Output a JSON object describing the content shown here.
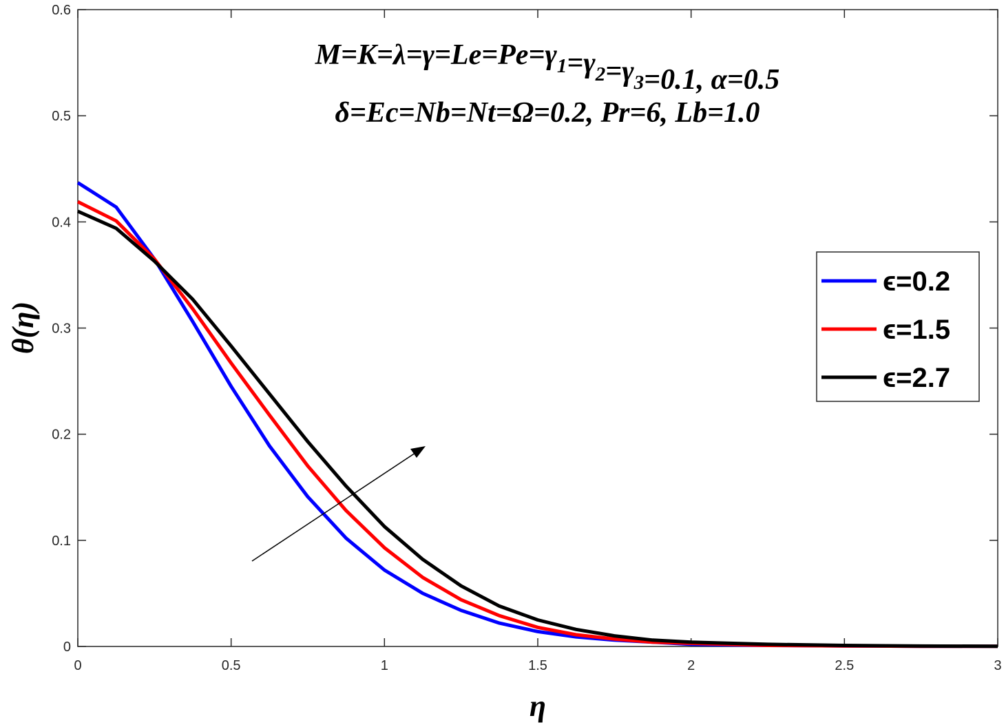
{
  "chart_data": {
    "type": "line",
    "xlabel": "η",
    "ylabel": "θ(η)",
    "xlim": [
      0,
      3
    ],
    "ylim": [
      0,
      0.6
    ],
    "xticks": [
      "0",
      "0.5",
      "1",
      "1.5",
      "2",
      "2.5",
      "3"
    ],
    "yticks": [
      "0",
      "0.1",
      "0.2",
      "0.3",
      "0.4",
      "0.5",
      "0.6"
    ],
    "annotation_line1": "M=K=λ=γ=Le=Pe=γ1=γ2=γ3=0.1, α=0.5",
    "annotation_line2": "δ=Ec=Nb=Nt=Ω=0.2, Pr=6, Lb=1.0",
    "legend_position": "right",
    "x": [
      0,
      0.125,
      0.25,
      0.375,
      0.5,
      0.625,
      0.75,
      0.875,
      1.0,
      1.125,
      1.25,
      1.375,
      1.5,
      1.625,
      1.75,
      1.875,
      2.0,
      2.25,
      2.5,
      2.75,
      3.0
    ],
    "series": [
      {
        "name": "ϵ=0.2",
        "color": "#0000ff",
        "values": [
          0.437,
          0.414,
          0.365,
          0.306,
          0.245,
          0.189,
          0.141,
          0.102,
          0.072,
          0.05,
          0.034,
          0.022,
          0.014,
          0.009,
          0.006,
          0.004,
          0.002,
          0.001,
          0.0005,
          0.0002,
          0.0001
        ]
      },
      {
        "name": "ϵ=1.5",
        "color": "#ff0000",
        "values": [
          0.419,
          0.401,
          0.365,
          0.318,
          0.267,
          0.218,
          0.17,
          0.128,
          0.093,
          0.065,
          0.044,
          0.029,
          0.018,
          0.011,
          0.007,
          0.004,
          0.003,
          0.001,
          0.0005,
          0.0002,
          0.0001
        ]
      },
      {
        "name": "ϵ=2.7",
        "color": "#000000",
        "values": [
          0.41,
          0.394,
          0.363,
          0.327,
          0.283,
          0.238,
          0.193,
          0.151,
          0.113,
          0.082,
          0.057,
          0.038,
          0.025,
          0.016,
          0.01,
          0.006,
          0.004,
          0.002,
          0.001,
          0.0004,
          0.0002
        ]
      }
    ]
  }
}
